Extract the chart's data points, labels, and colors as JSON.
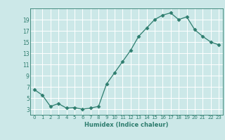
{
  "x": [
    0,
    1,
    2,
    3,
    4,
    5,
    6,
    7,
    8,
    9,
    10,
    11,
    12,
    13,
    14,
    15,
    16,
    17,
    18,
    19,
    20,
    21,
    22,
    23
  ],
  "y": [
    6.5,
    5.5,
    3.5,
    4.0,
    3.2,
    3.3,
    3.0,
    3.2,
    3.5,
    7.5,
    9.5,
    11.5,
    13.5,
    16.0,
    17.5,
    19.0,
    19.8,
    20.2,
    19.0,
    19.5,
    17.2,
    16.0,
    15.0,
    14.5
  ],
  "title": "",
  "xlabel": "Humidex (Indice chaleur)",
  "ylabel": "",
  "xlim": [
    -0.5,
    23.5
  ],
  "ylim": [
    2,
    21
  ],
  "yticks": [
    3,
    5,
    7,
    9,
    11,
    13,
    15,
    17,
    19
  ],
  "xticks": [
    0,
    1,
    2,
    3,
    4,
    5,
    6,
    7,
    8,
    9,
    10,
    11,
    12,
    13,
    14,
    15,
    16,
    17,
    18,
    19,
    20,
    21,
    22,
    23
  ],
  "xtick_labels": [
    "0",
    "1",
    "2",
    "3",
    "4",
    "5",
    "6",
    "7",
    "8",
    "9",
    "10",
    "11",
    "12",
    "13",
    "14",
    "15",
    "16",
    "17",
    "18",
    "19",
    "20",
    "21",
    "22",
    "23"
  ],
  "line_color": "#2e7d6e",
  "marker": "D",
  "marker_size": 2.5,
  "bg_color": "#cce8e8",
  "grid_color": "#ffffff",
  "axes_color": "#2e7d6e",
  "label_color": "#2e7d6e",
  "tick_color": "#2e7d6e"
}
